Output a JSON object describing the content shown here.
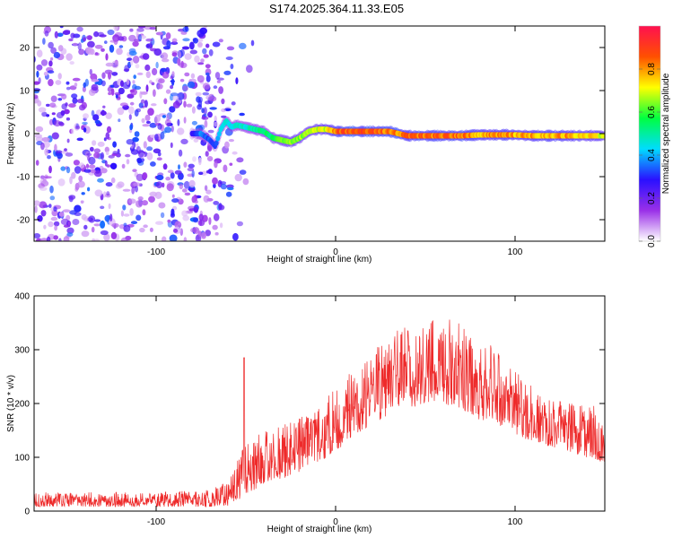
{
  "title": "S174.2025.364.11.33.E05",
  "chart_data": [
    {
      "type": "heatmap",
      "xlabel": "Height of straight line (km)",
      "ylabel": "Frequency (Hz)",
      "xlim": [
        -168,
        150
      ],
      "ylim": [
        -25,
        25
      ],
      "x_ticks": [
        -100,
        0,
        100
      ],
      "y_ticks": [
        -20,
        -10,
        0,
        10,
        20
      ],
      "colorbar": {
        "label": "Normalized spectral amplitude",
        "range": [
          0,
          1
        ],
        "ticks": [
          0.0,
          0.2,
          0.4,
          0.6,
          0.8
        ],
        "tick_labels": [
          "0.0",
          "0.2",
          "0.4",
          "0.6",
          "0.8"
        ],
        "colors": [
          "#ffffff",
          "#9a30e8",
          "#2a10ff",
          "#00dcff",
          "#00ff40",
          "#ffff00",
          "#ff5000",
          "#ff1050"
        ]
      },
      "noise_region_x": [
        -168,
        -65
      ],
      "ridge": {
        "x": [
          -80,
          -75,
          -70,
          -67,
          -64,
          -61,
          -58,
          -55,
          -50,
          -45,
          -40,
          -35,
          -30,
          -25,
          -20,
          -15,
          -10,
          -5,
          0,
          10,
          20,
          30,
          40,
          50,
          60,
          70,
          80,
          90,
          100,
          110,
          120,
          130,
          140,
          150
        ],
        "freq": [
          0,
          0,
          -1.5,
          -3,
          1,
          3,
          1.5,
          2,
          1.5,
          1,
          0.5,
          -1,
          -1.5,
          -2,
          -1,
          0.5,
          1,
          1,
          0.5,
          0.5,
          0.5,
          0.5,
          -0.5,
          -0.5,
          -0.5,
          -0.5,
          -0.3,
          -0.3,
          -0.3,
          -0.5,
          -0.5,
          -0.5,
          -0.5,
          -0.5
        ],
        "amp": [
          0.3,
          0.4,
          0.35,
          0.35,
          0.45,
          0.5,
          0.45,
          0.5,
          0.5,
          0.55,
          0.55,
          0.6,
          0.65,
          0.7,
          0.7,
          0.7,
          0.75,
          0.75,
          0.9,
          0.95,
          0.95,
          0.9,
          0.9,
          0.9,
          0.9,
          0.9,
          0.85,
          0.85,
          0.85,
          0.85,
          0.85,
          0.85,
          0.8,
          0.75
        ]
      }
    },
    {
      "type": "line",
      "xlabel": "Height of straight line (km)",
      "ylabel": "SNR (10 * v/v)",
      "xlim": [
        -168,
        150
      ],
      "ylim": [
        0,
        400
      ],
      "x_ticks": [
        -100,
        0,
        100
      ],
      "y_ticks": [
        0,
        100,
        200,
        300,
        400
      ],
      "color": "#ee2a2a",
      "trend": {
        "x": [
          -168,
          -100,
          -70,
          -60,
          -54,
          -50,
          -40,
          -30,
          -20,
          -10,
          0,
          10,
          20,
          30,
          40,
          50,
          60,
          70,
          80,
          90,
          100,
          110,
          120,
          130,
          140,
          150
        ],
        "upper": [
          35,
          35,
          40,
          55,
          110,
          140,
          150,
          160,
          175,
          190,
          230,
          270,
          300,
          330,
          350,
          360,
          360,
          350,
          330,
          300,
          260,
          230,
          210,
          200,
          200,
          190
        ],
        "lower": [
          8,
          8,
          8,
          10,
          20,
          30,
          50,
          60,
          70,
          90,
          110,
          140,
          160,
          180,
          190,
          200,
          200,
          190,
          170,
          160,
          140,
          130,
          120,
          110,
          100,
          90
        ]
      },
      "peak": {
        "x": -51,
        "y": 285
      }
    }
  ]
}
